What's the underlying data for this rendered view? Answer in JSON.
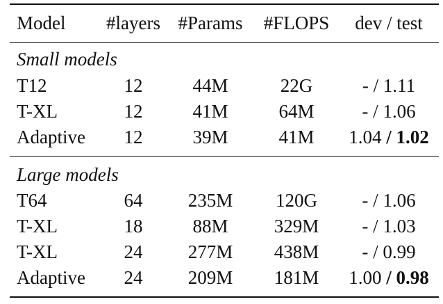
{
  "table": {
    "headers": [
      "Model",
      "#layers",
      "#Params",
      "#FLOPS",
      "dev / test"
    ],
    "sections": [
      {
        "title": "Small models",
        "rows": [
          {
            "model": "T12",
            "layers": "12",
            "params": "44M",
            "flops": "22G",
            "dev": "-",
            "sep": " / ",
            "test": "1.11",
            "test_bold": false
          },
          {
            "model": "T-XL",
            "layers": "12",
            "params": "41M",
            "flops": "64M",
            "dev": "-",
            "sep": " / ",
            "test": "1.06",
            "test_bold": false
          },
          {
            "model": "Adaptive",
            "layers": "12",
            "params": "39M",
            "flops": "41M",
            "dev": "1.04",
            "sep": " / ",
            "test": "1.02",
            "test_bold": true
          }
        ]
      },
      {
        "title": "Large models",
        "rows": [
          {
            "model": "T64",
            "layers": "64",
            "params": "235M",
            "flops": "120G",
            "dev": "-",
            "sep": " / ",
            "test": "1.06",
            "test_bold": false
          },
          {
            "model": "T-XL",
            "layers": "18",
            "params": "88M",
            "flops": "329M",
            "dev": "-",
            "sep": " / ",
            "test": "1.03",
            "test_bold": false
          },
          {
            "model": "T-XL",
            "layers": "24",
            "params": "277M",
            "flops": "438M",
            "dev": "-",
            "sep": " / ",
            "test": "0.99",
            "test_bold": false
          },
          {
            "model": "Adaptive",
            "layers": "24",
            "params": "209M",
            "flops": "181M",
            "dev": "1.00",
            "sep": " / ",
            "test": "0.98",
            "test_bold": true
          }
        ]
      }
    ]
  }
}
